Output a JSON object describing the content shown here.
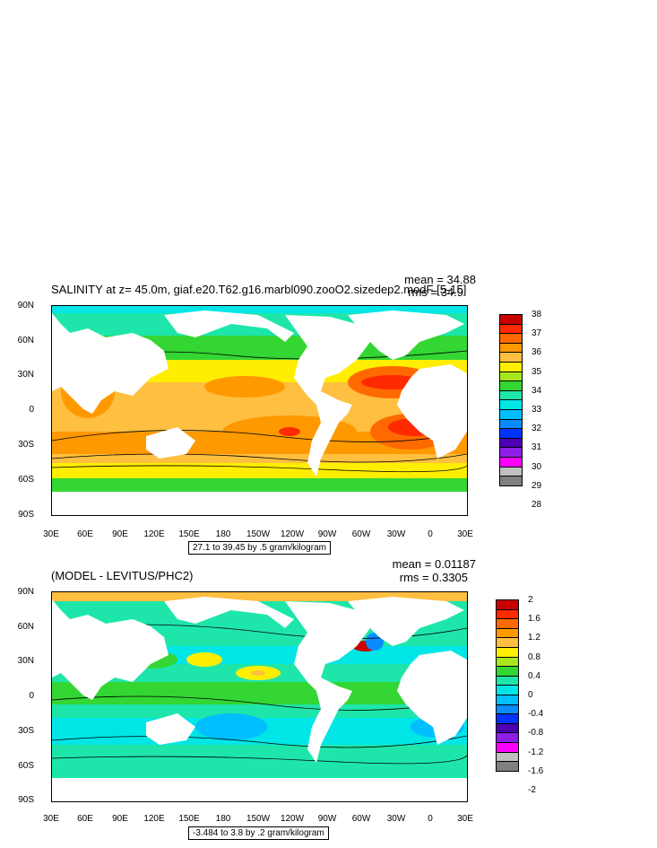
{
  "top": {
    "title": "SALINITY at z=  45.0m, giaf.e20.T62.g16.marbl090.zooO2.sizedep2.modF [5-15]",
    "mean": "mean = 34.88",
    "rms": "rms = 34.9",
    "contour_info": "27.1 to 39.45 by .5 gram/kilogram",
    "colorbar_labels": [
      "38",
      "37",
      "36",
      "35",
      "34",
      "33",
      "32",
      "31",
      "30",
      "29",
      "28"
    ],
    "colorbar_colors": [
      "#c80000",
      "#ff2a00",
      "#ff6a00",
      "#ff9900",
      "#ffbf40",
      "#ffee00",
      "#a8e61e",
      "#33d633",
      "#1ee6aa",
      "#00e6e6",
      "#00bfff",
      "#0a8cff",
      "#0033ff",
      "#4b00b3",
      "#8c1ee6",
      "#ff00ff",
      "#c0c0c0",
      "#808080"
    ]
  },
  "bottom": {
    "title": "(MODEL - LEVITUS/PHC2)",
    "mean": "mean = 0.01187",
    "rms": "rms = 0.3305",
    "contour_info": "-3.484 to 3.8 by .2 gram/kilogram",
    "colorbar_labels": [
      "2",
      "1.6",
      "1.2",
      "0.8",
      "0.4",
      "0",
      "-0.4",
      "-0.8",
      "-1.2",
      "-1.6",
      "-2"
    ],
    "colorbar_colors": [
      "#c80000",
      "#ff2a00",
      "#ff6a00",
      "#ff9900",
      "#ffbf40",
      "#ffee00",
      "#a8e61e",
      "#33d633",
      "#1ee6aa",
      "#00e6e6",
      "#00bfff",
      "#0a8cff",
      "#0033ff",
      "#4b00b3",
      "#8c1ee6",
      "#ff00ff",
      "#c0c0c0",
      "#808080"
    ]
  },
  "axes": {
    "lat_labels": [
      "90N",
      "60N",
      "30N",
      "0",
      "30S",
      "60S",
      "90S"
    ],
    "lon_labels": [
      "30E",
      "60E",
      "90E",
      "120E",
      "150E",
      "180",
      "150W",
      "120W",
      "90W",
      "60W",
      "30W",
      "0",
      "30E"
    ]
  }
}
